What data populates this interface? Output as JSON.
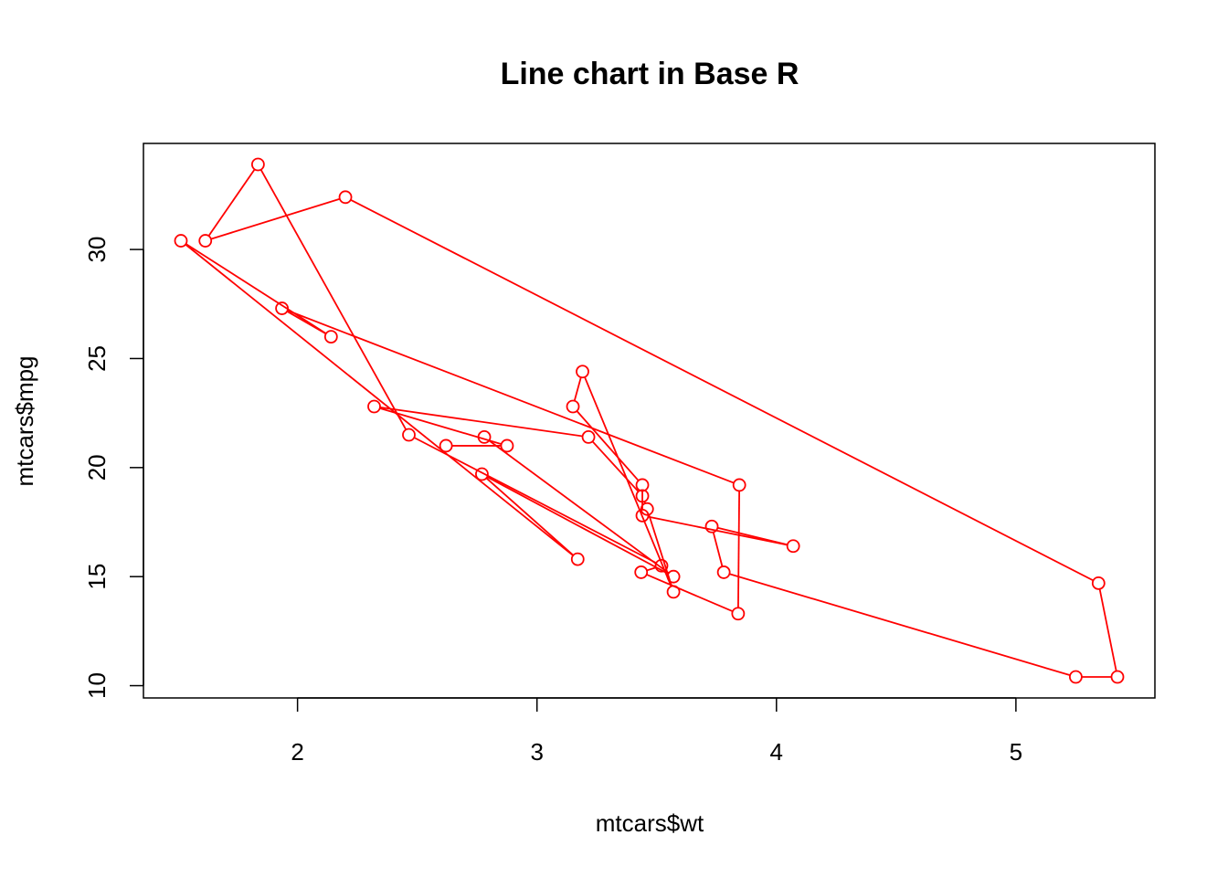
{
  "chart_data": {
    "type": "line",
    "title": "Line chart in Base R",
    "xlabel": "mtcars$wt",
    "ylabel": "mtcars$mpg",
    "xlim": [
      1.513,
      5.424
    ],
    "ylim": [
      10.4,
      33.9
    ],
    "x_ticks": [
      2,
      3,
      4,
      5
    ],
    "y_ticks": [
      10,
      15,
      20,
      25,
      30
    ],
    "grid": false,
    "legend": "none",
    "markers": "open-circle",
    "color": "#ff0000",
    "series": [
      {
        "x": [
          2.62,
          2.875,
          2.32,
          3.215,
          3.44,
          3.46,
          3.57,
          3.19,
          3.15,
          3.44,
          3.44,
          4.07,
          3.73,
          3.78,
          5.25,
          5.424,
          5.345,
          2.2,
          1.615,
          1.835,
          2.465,
          3.52,
          3.435,
          3.84,
          3.845,
          1.935,
          2.14,
          1.513,
          3.17,
          2.77,
          3.57,
          2.78
        ],
        "y": [
          21.0,
          21.0,
          22.8,
          21.4,
          18.7,
          18.1,
          14.3,
          24.4,
          22.8,
          19.2,
          17.8,
          16.4,
          17.3,
          15.2,
          10.4,
          10.4,
          14.7,
          32.4,
          30.4,
          33.9,
          21.5,
          15.5,
          15.2,
          13.3,
          19.2,
          27.3,
          26.0,
          30.4,
          15.8,
          19.7,
          15.0,
          21.4
        ]
      }
    ]
  }
}
